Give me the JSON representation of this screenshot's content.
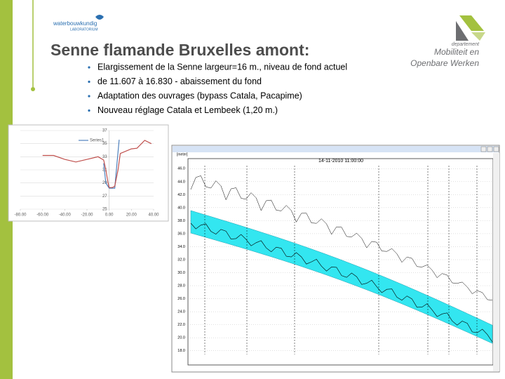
{
  "header": {
    "title": "Senne flamande Bruxelles amont:",
    "logo_left": "waterbouwkundig",
    "logo_left_sub": "LABORATORIUM",
    "logo_right": [
      "departement",
      "Mobiliteit en",
      "Openbare Werken"
    ]
  },
  "bullets": [
    "Elargissement de la Senne largeur=16 m., niveau de fond actuel",
    "de 11.607 à 16.830  - abaissement du fond",
    "Adaptation des ouvrages (bypass Catala, Pacapime)",
    "Nouveau réglage Catala et Lembeek (1,20 m.)"
  ],
  "chart_data": {
    "type": "line",
    "xlim": [
      -80,
      40
    ],
    "xticks": [
      {
        "value": -80,
        "label": "-80.00"
      },
      {
        "value": -60,
        "label": "-60.00"
      },
      {
        "value": -40,
        "label": "-40.00"
      },
      {
        "value": -20,
        "label": "-20.00"
      },
      {
        "value": 0,
        "label": "0.00"
      },
      {
        "value": 20,
        "label": "20.00"
      },
      {
        "value": 40,
        "label": "40.00"
      }
    ],
    "ylim": [
      25,
      37
    ],
    "yticks": [
      25,
      27,
      29,
      31,
      33,
      35,
      37
    ],
    "grid": true,
    "series": [
      {
        "name": "Series1",
        "color": "#4f81bd",
        "x": [
          -5,
          -3,
          0,
          5,
          7,
          9
        ],
        "values": [
          32,
          29,
          28.2,
          28.2,
          32,
          35.6
        ]
      },
      {
        "color": "#c0504d",
        "x": [
          -60,
          -50,
          -40,
          -30,
          -20,
          -10,
          -5,
          -3,
          -1,
          0,
          3,
          5,
          8,
          10,
          20,
          25,
          32,
          38
        ],
        "values": [
          33.2,
          33.2,
          32.6,
          32.2,
          32.6,
          33,
          32.5,
          31,
          29,
          28.3,
          28.3,
          28.5,
          31,
          33.5,
          34.2,
          34.3,
          35.5,
          35
        ]
      }
    ]
  },
  "profile_plot": {
    "timestamp": "14-11-2010 11:00:00",
    "y_unit": "[meter]",
    "ylim": [
      17,
      47
    ],
    "yticks": [
      {
        "value": 46,
        "label": "46.0"
      },
      {
        "value": 44,
        "label": "44.0"
      },
      {
        "value": 42,
        "label": "42.0"
      },
      {
        "value": 40,
        "label": "40.0"
      },
      {
        "value": 38,
        "label": "38.0"
      },
      {
        "value": 36,
        "label": "36.0"
      },
      {
        "value": 34,
        "label": "34.0"
      },
      {
        "value": 32,
        "label": "32.0"
      },
      {
        "value": 30,
        "label": "30.0"
      },
      {
        "value": 28,
        "label": "28.0"
      },
      {
        "value": 26,
        "label": "26.0"
      },
      {
        "value": 24,
        "label": "24.0"
      },
      {
        "value": 22,
        "label": "22.0"
      },
      {
        "value": 20,
        "label": "20.0"
      },
      {
        "value": 18,
        "label": "18.0"
      }
    ]
  }
}
